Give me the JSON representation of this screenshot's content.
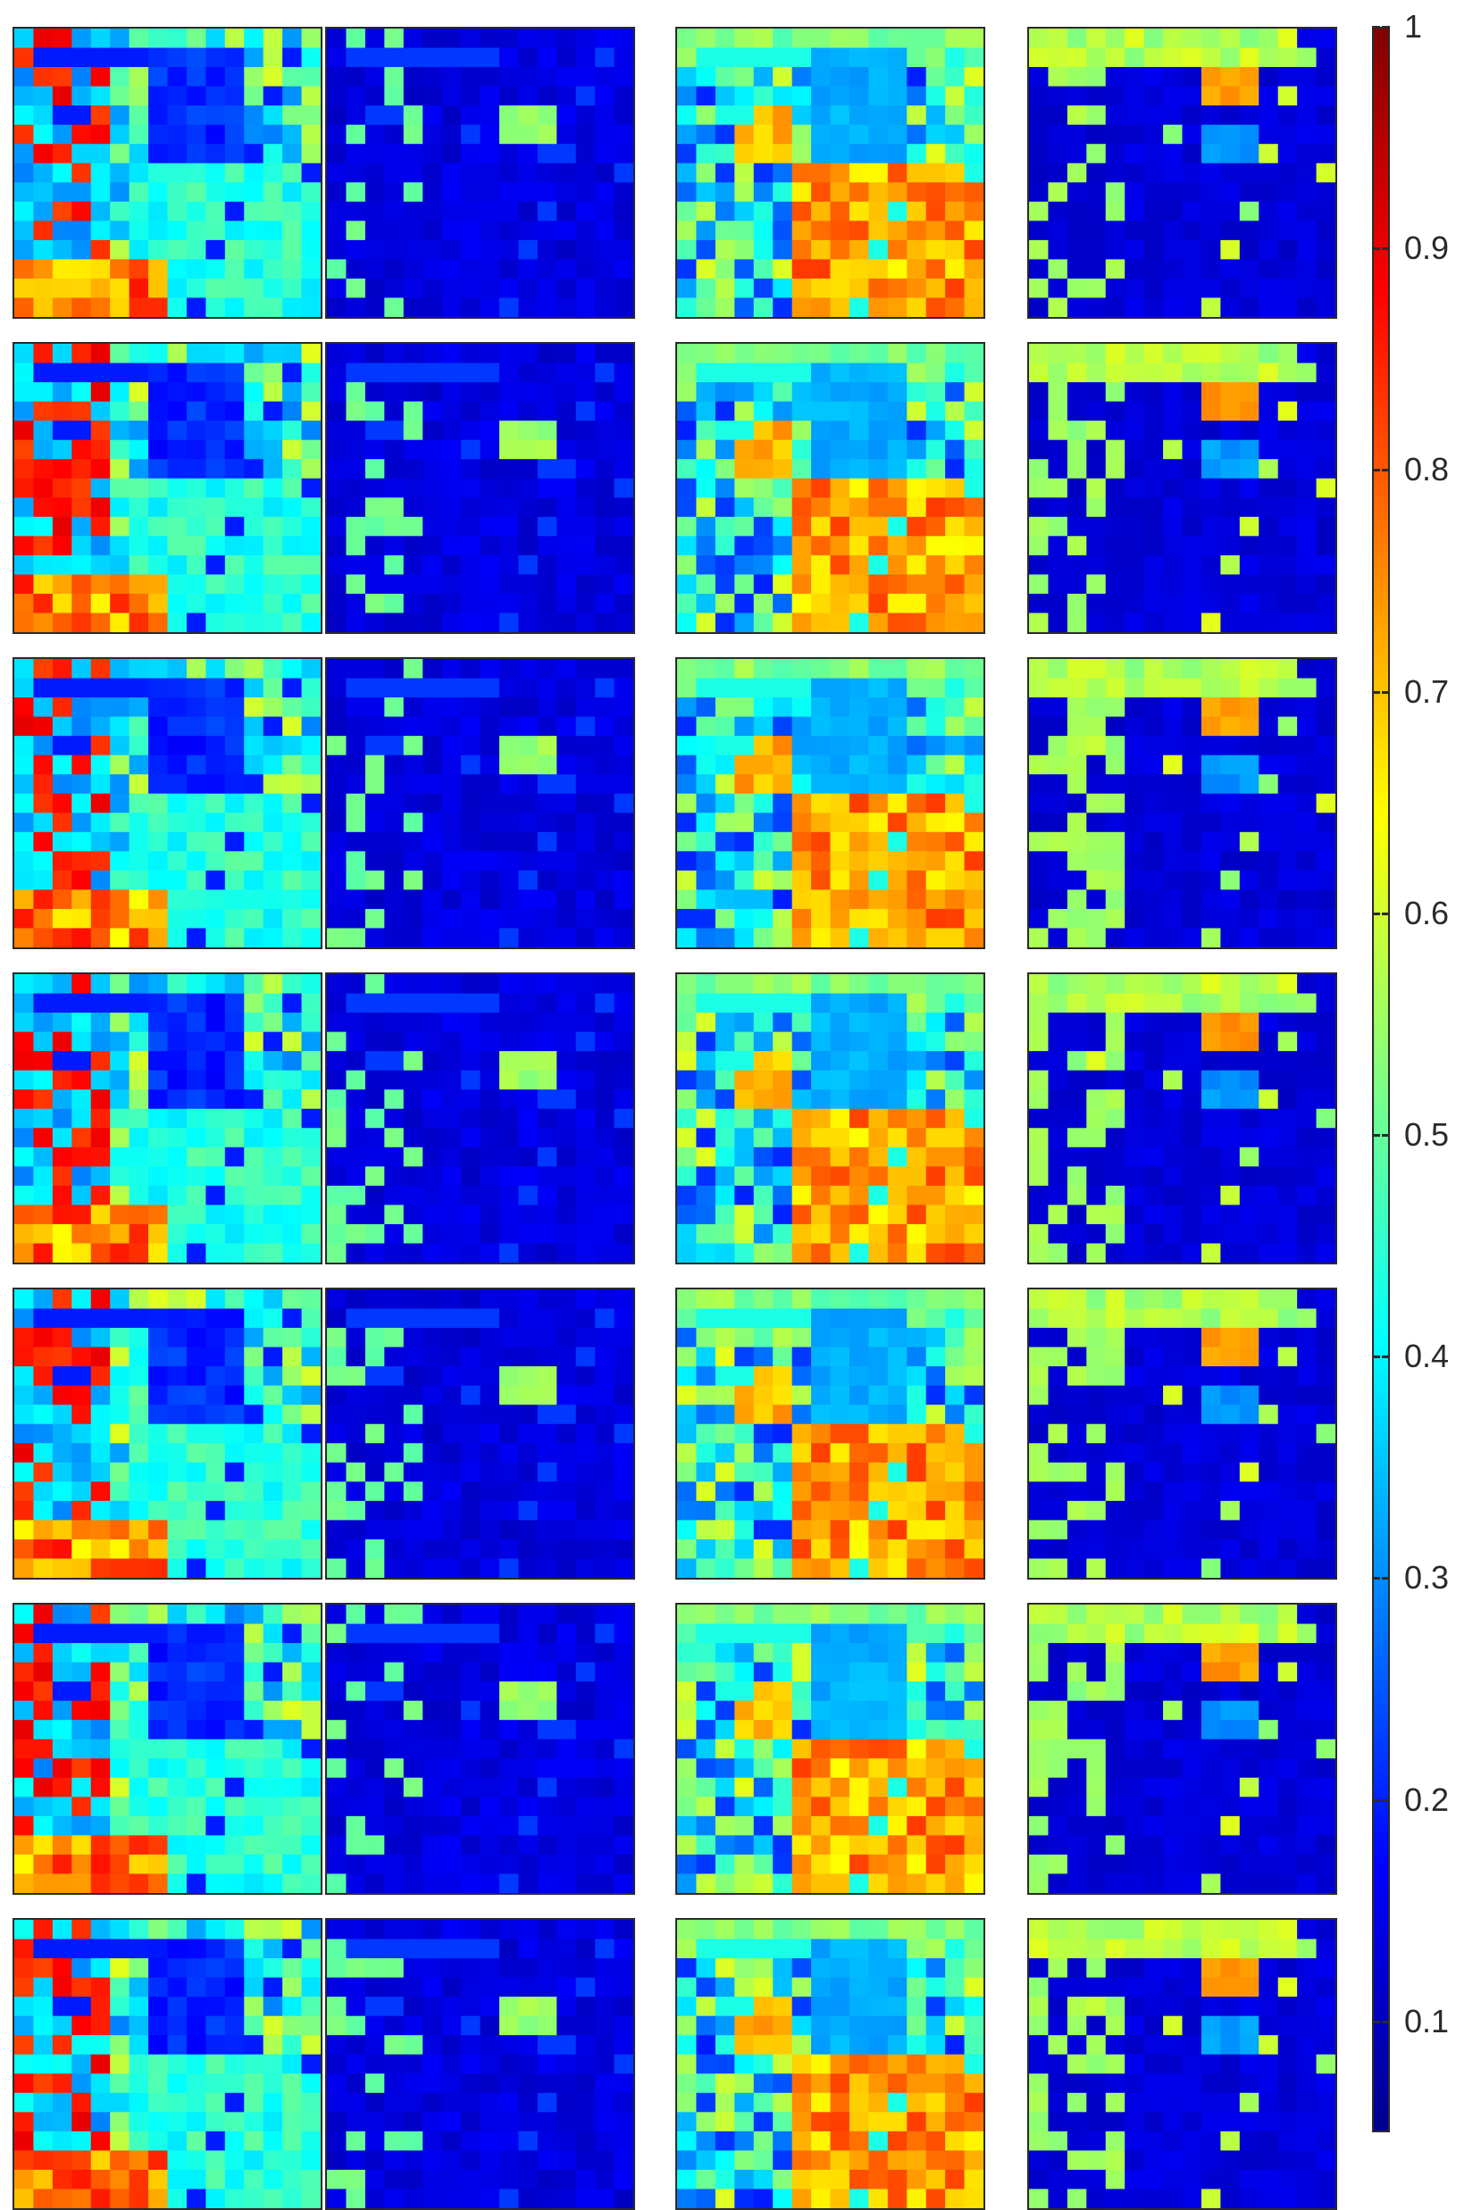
{
  "chart_data": {
    "type": "heatmap",
    "layout": {
      "rows": 7,
      "columns": 4
    },
    "panels_description": "7 x 4 grid of abundance maps, jet colormap",
    "colormap": "jet",
    "colormap_stops": [
      "#00008f",
      "#0000ff",
      "#0080ff",
      "#00ffff",
      "#80ff80",
      "#ffff00",
      "#ff8000",
      "#ff0000",
      "#800000"
    ],
    "colorbar": {
      "orientation": "vertical",
      "placement": "right",
      "range": [
        0.05,
        1
      ],
      "ticks": [
        {
          "value": 1,
          "label": "1"
        },
        {
          "value": 0.9,
          "label": "0.9"
        },
        {
          "value": 0.8,
          "label": "0.8"
        },
        {
          "value": 0.7,
          "label": "0.7"
        },
        {
          "value": 0.6,
          "label": "0.6"
        },
        {
          "value": 0.5,
          "label": "0.5"
        },
        {
          "value": 0.4,
          "label": "0.4"
        },
        {
          "value": 0.3,
          "label": "0.3"
        },
        {
          "value": 0.2,
          "label": "0.2"
        },
        {
          "value": 0.1,
          "label": "0.1"
        }
      ]
    },
    "column_patterns": [
      {
        "column": 1,
        "dominant_value": 0.45
      },
      {
        "column": 2,
        "dominant_value": 0.05
      },
      {
        "column": 3,
        "dominant_value": 0.6
      },
      {
        "column": 4,
        "dominant_value": 0.1
      }
    ],
    "title": "",
    "xlabel": "",
    "ylabel": ""
  }
}
